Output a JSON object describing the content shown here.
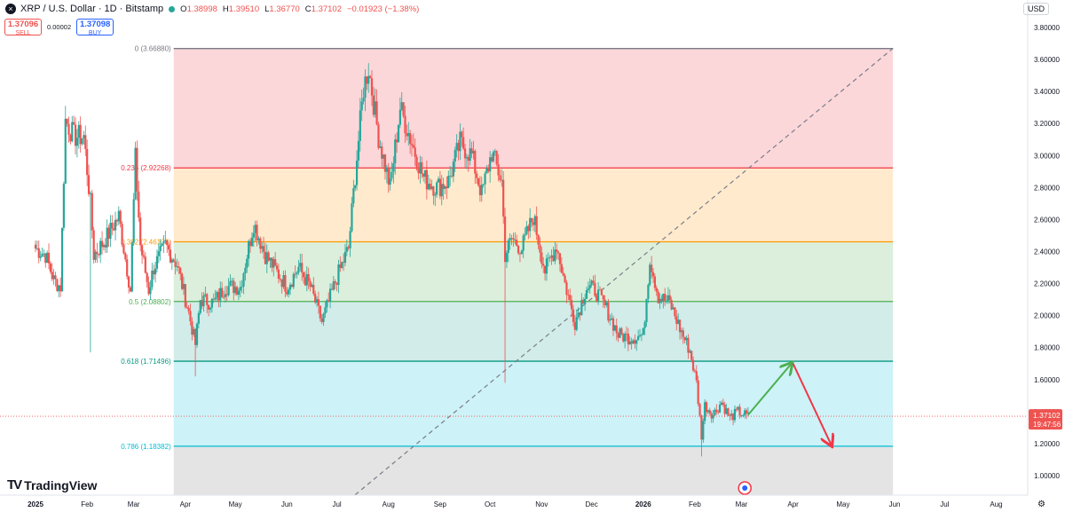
{
  "header": {
    "symbol_title": "XRP / U.S. Dollar · 1D · Bitstamp",
    "ohlc": [
      {
        "k": "O",
        "v": "1.38998"
      },
      {
        "k": "H",
        "v": "1.39510"
      },
      {
        "k": "L",
        "v": "1.36770"
      },
      {
        "k": "C",
        "v": "1.37102"
      }
    ],
    "change": "−0.01923 (−1.38%)"
  },
  "trade": {
    "sell_price": "1.37096",
    "sell_label": "SELL",
    "spread": "0.00002",
    "buy_price": "1.37098",
    "buy_label": "BUY"
  },
  "currency": "USD",
  "brand": "TradingView",
  "icons": [
    "close-x-icon",
    "market-open-dot-icon",
    "tradingview-logo-icon",
    "settings-icon",
    "event-flag-icon"
  ],
  "colors": {
    "up": "#26a69a",
    "down": "#ef5350",
    "fib_0": "#787b86",
    "fib_0236": "#f23645",
    "fib_0382": "#ff9800",
    "fib_05": "#4caf50",
    "fib_0618": "#089981",
    "fib_0786": "#00bcd4",
    "arrow_up": "#4caf50",
    "arrow_down": "#f23645"
  },
  "chart_data": {
    "type": "candlestick",
    "title": "XRP / U.S. Dollar · 1D · Bitstamp",
    "ylim": [
      0.9,
      3.88
    ],
    "y_ticks": [
      "3.80000",
      "3.60000",
      "3.40000",
      "3.20000",
      "3.00000",
      "2.80000",
      "2.60000",
      "2.40000",
      "2.20000",
      "2.00000",
      "1.80000",
      "1.60000",
      "1.40000",
      "1.20000",
      "1.00000"
    ],
    "x_ticks": [
      "2025",
      "Feb",
      "Mar",
      "Apr",
      "May",
      "Jun",
      "Jul",
      "Aug",
      "Sep",
      "Oct",
      "Nov",
      "Dec",
      "2026",
      "Feb",
      "Mar",
      "Apr",
      "May",
      "Jun",
      "Jul",
      "Aug"
    ],
    "x_range": [
      "2025-01-01",
      "2026-08-05"
    ],
    "last_price": {
      "value": 1.37102,
      "label": "1.37102",
      "countdown": "19:47:56"
    },
    "fibonacci": {
      "date_range": [
        "2025-03-25",
        "2026-05-31"
      ],
      "levels": [
        {
          "ratio": 0,
          "price": 3.6688,
          "label": "0 (3.66880)"
        },
        {
          "ratio": 0.236,
          "price": 2.92268,
          "label": "0.236 (2.92268)"
        },
        {
          "ratio": 0.382,
          "price": 2.46109,
          "label": "0.382 (2.46109)"
        },
        {
          "ratio": 0.5,
          "price": 2.08802,
          "label": "0.5 (2.08802)"
        },
        {
          "ratio": 0.618,
          "price": 1.71496,
          "label": "0.618 (1.71496)"
        },
        {
          "ratio": 0.786,
          "price": 1.18382,
          "label": "0.786 (1.18382)"
        }
      ],
      "trendline": {
        "from": [
          "2025-07-12",
          0.88
        ],
        "to": [
          "2026-05-31",
          3.67
        ]
      }
    },
    "projection": [
      {
        "direction": "up",
        "from": [
          "2026-03-05",
          1.38
        ],
        "to": [
          "2026-03-31",
          1.7
        ]
      },
      {
        "direction": "down",
        "from": [
          "2026-04-01",
          1.7
        ],
        "to": [
          "2026-04-24",
          1.19
        ]
      }
    ],
    "anchors": [
      {
        "date": "2025-01-01",
        "price": 2.42
      },
      {
        "date": "2025-01-07",
        "price": 2.38
      },
      {
        "date": "2025-01-12",
        "price": 2.22
      },
      {
        "date": "2025-01-16",
        "price": 2.18
      },
      {
        "date": "2025-01-19",
        "price": 3.22
      },
      {
        "date": "2025-01-24",
        "price": 3.12
      },
      {
        "date": "2025-01-30",
        "price": 3.12
      },
      {
        "date": "2025-02-03",
        "price": 2.7
      },
      {
        "date": "2025-02-05",
        "price": 2.38
      },
      {
        "date": "2025-02-11",
        "price": 2.46
      },
      {
        "date": "2025-02-20",
        "price": 2.62
      },
      {
        "date": "2025-02-27",
        "price": 2.16
      },
      {
        "date": "2025-03-02",
        "price": 2.98
      },
      {
        "date": "2025-03-05",
        "price": 2.44
      },
      {
        "date": "2025-03-10",
        "price": 2.16
      },
      {
        "date": "2025-03-13",
        "price": 2.3
      },
      {
        "date": "2025-03-20",
        "price": 2.44
      },
      {
        "date": "2025-03-27",
        "price": 2.32
      },
      {
        "date": "2025-04-03",
        "price": 2.02
      },
      {
        "date": "2025-04-07",
        "price": 1.82
      },
      {
        "date": "2025-04-10",
        "price": 2.1
      },
      {
        "date": "2025-04-18",
        "price": 2.08
      },
      {
        "date": "2025-04-25",
        "price": 2.18
      },
      {
        "date": "2025-05-04",
        "price": 2.18
      },
      {
        "date": "2025-05-12",
        "price": 2.58
      },
      {
        "date": "2025-05-19",
        "price": 2.38
      },
      {
        "date": "2025-06-01",
        "price": 2.18
      },
      {
        "date": "2025-06-08",
        "price": 2.3
      },
      {
        "date": "2025-06-15",
        "price": 2.18
      },
      {
        "date": "2025-06-22",
        "price": 1.96
      },
      {
        "date": "2025-07-01",
        "price": 2.24
      },
      {
        "date": "2025-07-08",
        "price": 2.42
      },
      {
        "date": "2025-07-12",
        "price": 2.88
      },
      {
        "date": "2025-07-17",
        "price": 3.42
      },
      {
        "date": "2025-07-20",
        "price": 3.55
      },
      {
        "date": "2025-07-26",
        "price": 3.12
      },
      {
        "date": "2025-08-02",
        "price": 2.8
      },
      {
        "date": "2025-08-08",
        "price": 3.3
      },
      {
        "date": "2025-08-15",
        "price": 3.08
      },
      {
        "date": "2025-08-22",
        "price": 2.86
      },
      {
        "date": "2025-08-30",
        "price": 2.8
      },
      {
        "date": "2025-09-06",
        "price": 2.84
      },
      {
        "date": "2025-09-13",
        "price": 3.08
      },
      {
        "date": "2025-09-20",
        "price": 3.0
      },
      {
        "date": "2025-09-26",
        "price": 2.76
      },
      {
        "date": "2025-10-02",
        "price": 3.02
      },
      {
        "date": "2025-10-08",
        "price": 2.84
      },
      {
        "date": "2025-10-10",
        "price": 2.38
      },
      {
        "date": "2025-10-14",
        "price": 2.48
      },
      {
        "date": "2025-10-20",
        "price": 2.42
      },
      {
        "date": "2025-10-27",
        "price": 2.62
      },
      {
        "date": "2025-11-03",
        "price": 2.28
      },
      {
        "date": "2025-11-10",
        "price": 2.44
      },
      {
        "date": "2025-11-15",
        "price": 2.2
      },
      {
        "date": "2025-11-21",
        "price": 1.96
      },
      {
        "date": "2025-11-28",
        "price": 2.18
      },
      {
        "date": "2025-12-03",
        "price": 2.16
      },
      {
        "date": "2025-12-10",
        "price": 2.04
      },
      {
        "date": "2025-12-17",
        "price": 1.88
      },
      {
        "date": "2025-12-25",
        "price": 1.86
      },
      {
        "date": "2026-01-01",
        "price": 1.88
      },
      {
        "date": "2026-01-05",
        "price": 2.36
      },
      {
        "date": "2026-01-10",
        "price": 2.12
      },
      {
        "date": "2026-01-17",
        "price": 2.08
      },
      {
        "date": "2026-01-23",
        "price": 1.92
      },
      {
        "date": "2026-01-29",
        "price": 1.78
      },
      {
        "date": "2026-02-02",
        "price": 1.58
      },
      {
        "date": "2026-02-05",
        "price": 1.25
      },
      {
        "date": "2026-02-07",
        "price": 1.44
      },
      {
        "date": "2026-02-12",
        "price": 1.38
      },
      {
        "date": "2026-02-17",
        "price": 1.46
      },
      {
        "date": "2026-02-22",
        "price": 1.36
      },
      {
        "date": "2026-02-27",
        "price": 1.4
      },
      {
        "date": "2026-03-05",
        "price": 1.37
      }
    ]
  }
}
